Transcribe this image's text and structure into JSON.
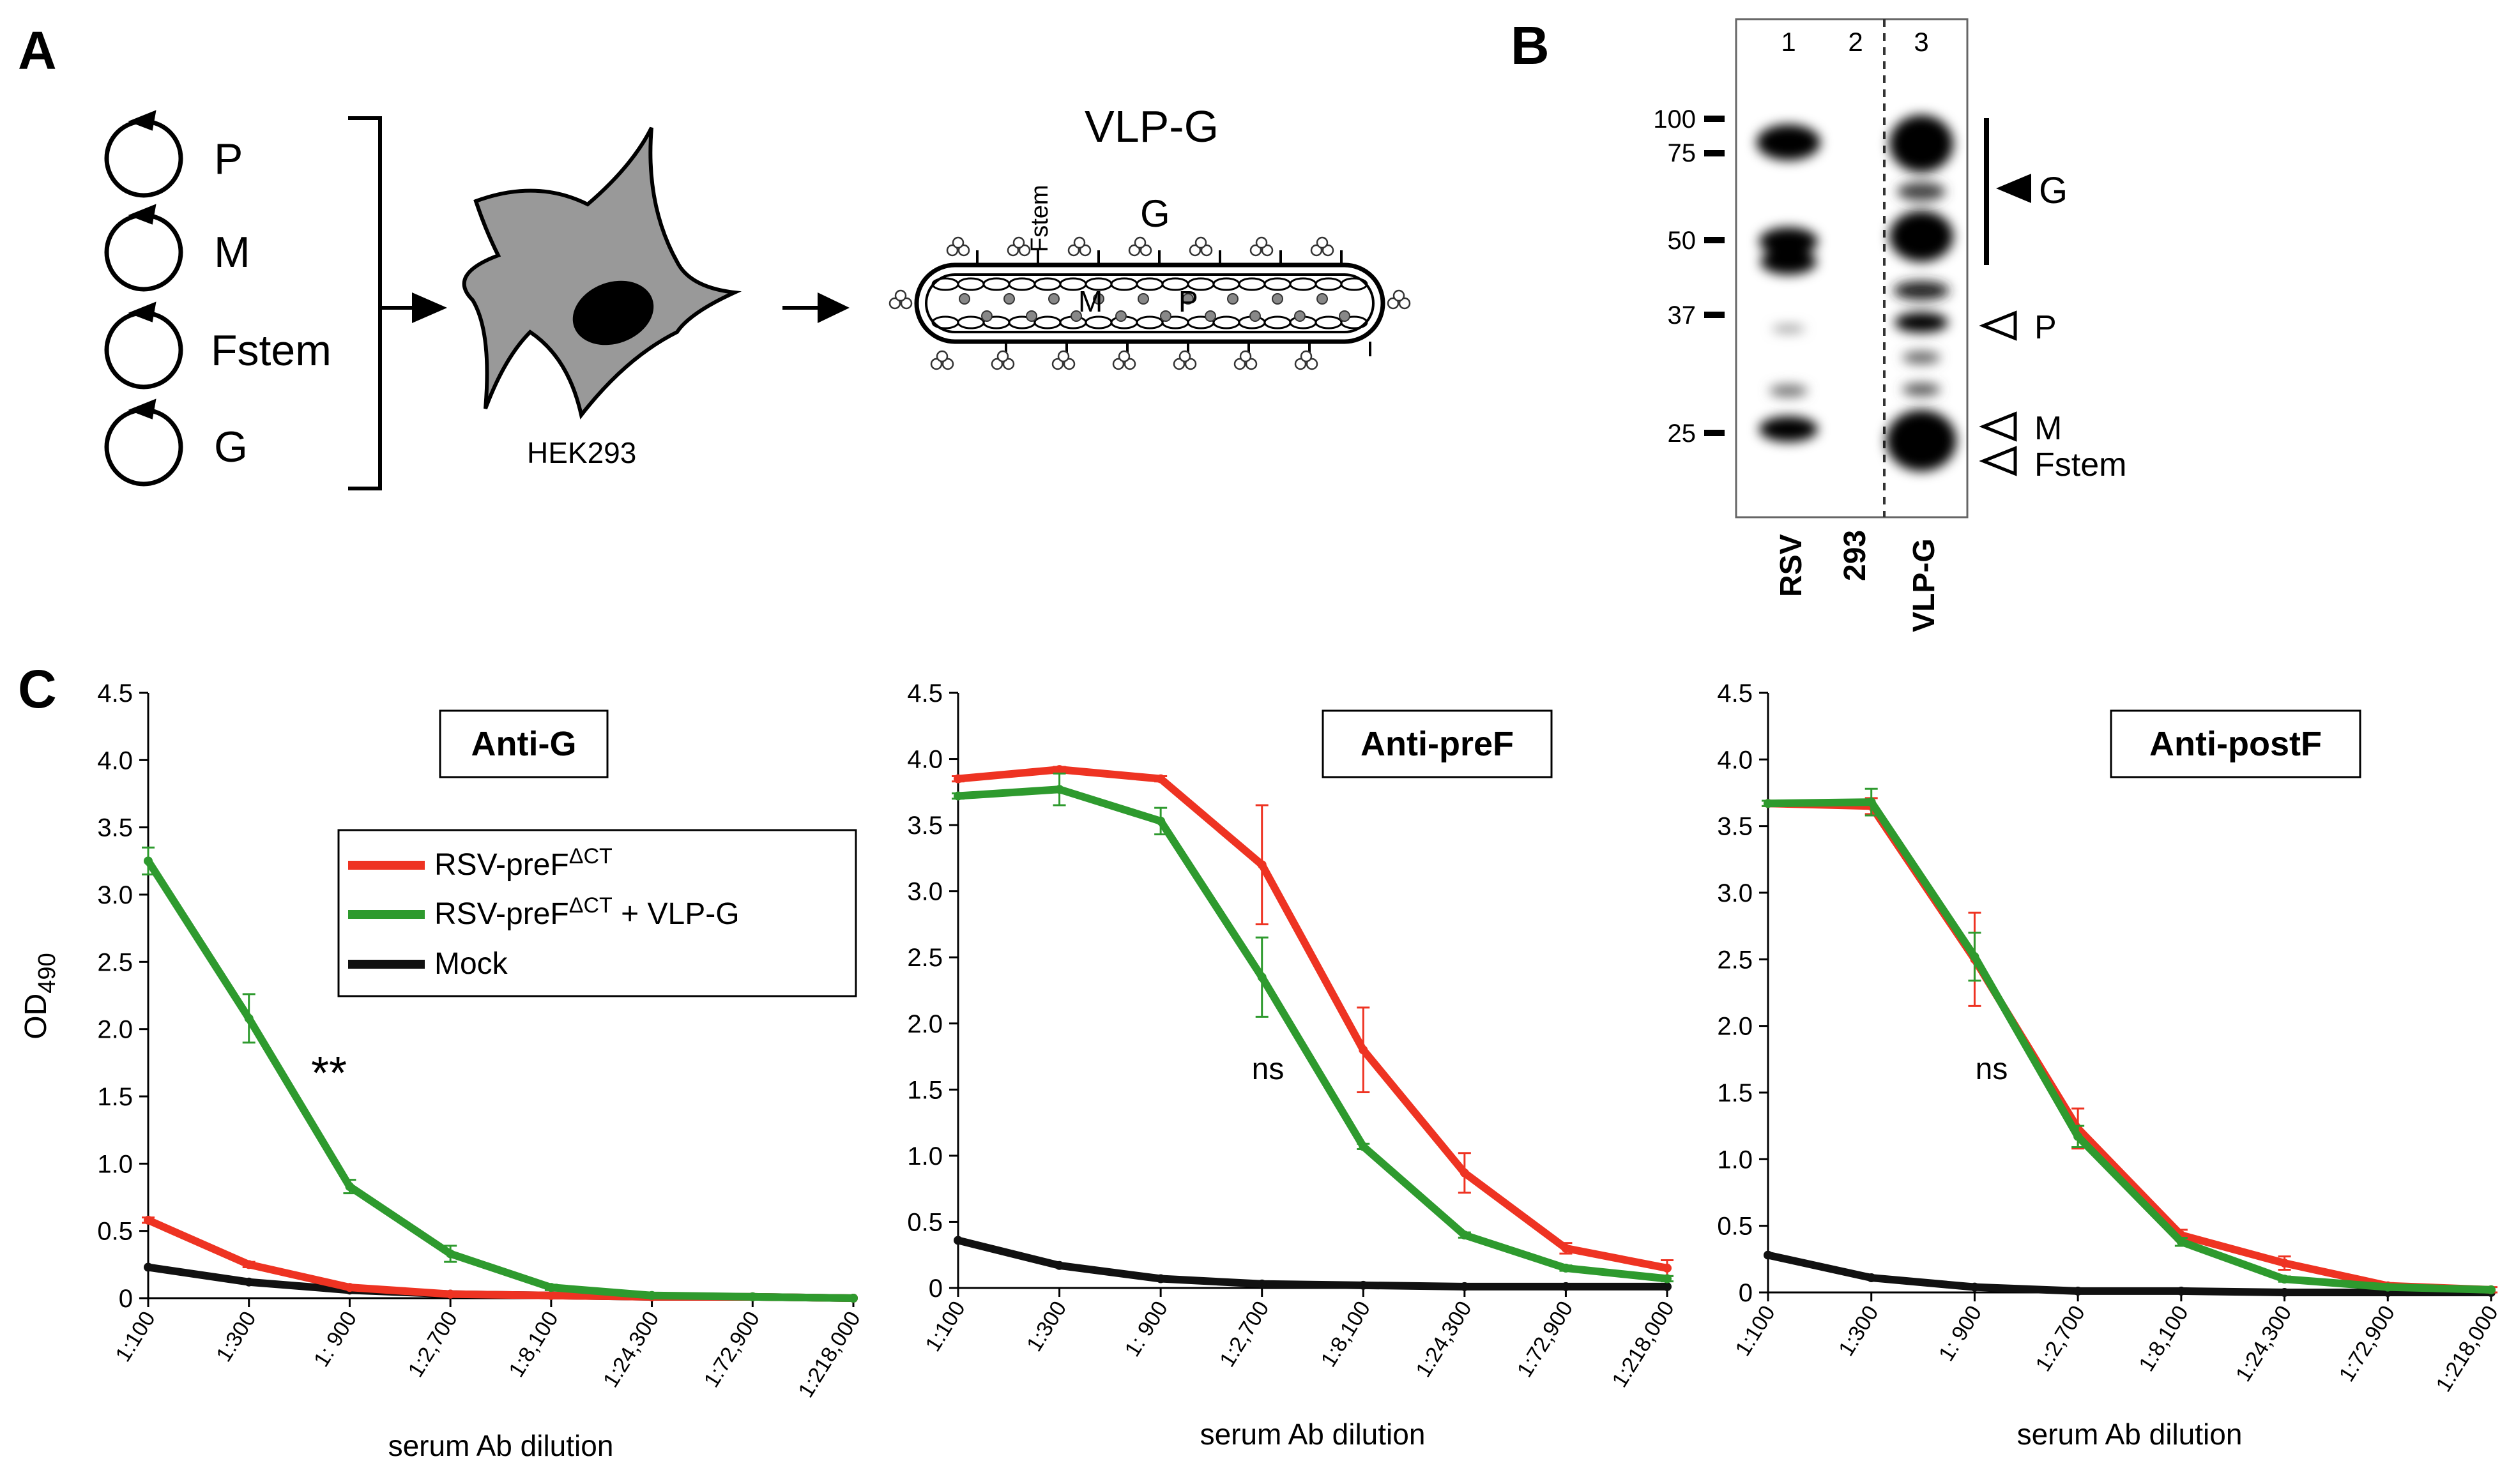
{
  "panels": {
    "A": {
      "letter": "A",
      "plasmids": [
        "P",
        "M",
        "Fstem",
        "G"
      ],
      "cell_label": "HEK293",
      "vlp_title": "VLP-G",
      "vlp_labels": {
        "fstem": "Fstem",
        "g": "G",
        "m": "M",
        "p": "P"
      }
    },
    "B": {
      "letter": "B",
      "lanes": [
        "1",
        "2",
        "3"
      ],
      "lane_names": [
        "RSV",
        "293",
        "VLP-G"
      ],
      "markers": [
        "100",
        "75",
        "50",
        "37",
        "25"
      ],
      "bands": {
        "G": "G",
        "P": "P",
        "M": "M",
        "Fstem": "Fstem"
      }
    },
    "C": {
      "letter": "C"
    }
  },
  "legend": {
    "items": [
      {
        "base": "RSV-preF",
        "sup": "ΔCT",
        "suffix": "",
        "color": "#ee3322"
      },
      {
        "base": "RSV-preF",
        "sup": "ΔCT",
        "suffix": " + VLP-G",
        "color": "#2e9a2e"
      },
      {
        "base": "Mock",
        "sup": "",
        "suffix": "",
        "color": "#111111"
      }
    ]
  },
  "colors": {
    "red": "#ee3322",
    "green": "#2e9a2e",
    "black": "#111111"
  },
  "chart_data": [
    {
      "type": "line",
      "title": "Anti-G",
      "ylabel": "OD490",
      "xlabel": "serum Ab dilution",
      "categories": [
        "1:100",
        "1:300",
        "1: 900",
        "1:2,700",
        "1:8,100",
        "1:24,300",
        "1:72,900",
        "1:218,000"
      ],
      "ylim": [
        0,
        4.5
      ],
      "yticks": [
        "0",
        "0.5",
        "1.0",
        "1.5",
        "2.0",
        "2.5",
        "3.0",
        "3.5",
        "4.0",
        "4.5"
      ],
      "annotation": "**",
      "series": [
        {
          "name": "RSV-preFΔCT",
          "color": "red",
          "values": [
            0.58,
            0.25,
            0.08,
            0.03,
            0.02,
            0.01,
            0.01,
            0.0
          ],
          "errors": [
            0.02,
            0.02,
            0.01,
            0,
            0,
            0,
            0,
            0
          ]
        },
        {
          "name": "RSV-preFΔCT + VLP-G",
          "color": "green",
          "values": [
            3.25,
            2.08,
            0.83,
            0.33,
            0.08,
            0.02,
            0.01,
            0.0
          ],
          "errors": [
            0.1,
            0.18,
            0.05,
            0.06,
            0.02,
            0,
            0,
            0
          ]
        },
        {
          "name": "Mock",
          "color": "black",
          "values": [
            0.23,
            0.12,
            0.06,
            0.03,
            0.02,
            0.01,
            0.01,
            0.0
          ],
          "errors": [
            0,
            0,
            0,
            0,
            0,
            0,
            0,
            0
          ]
        }
      ]
    },
    {
      "type": "line",
      "title": "Anti-preF",
      "xlabel": "serum Ab dilution",
      "categories": [
        "1:100",
        "1:300",
        "1: 900",
        "1:2,700",
        "1:8,100",
        "1:24,300",
        "1:72,900",
        "1:218,000"
      ],
      "ylim": [
        0,
        4.5
      ],
      "yticks": [
        "0",
        "0.5",
        "1.0",
        "1.5",
        "2.0",
        "2.5",
        "3.0",
        "3.5",
        "4.0",
        "4.5"
      ],
      "annotation": "ns",
      "series": [
        {
          "name": "RSV-preFΔCT",
          "color": "red",
          "values": [
            3.85,
            3.92,
            3.85,
            3.2,
            1.8,
            0.87,
            0.3,
            0.15
          ],
          "errors": [
            0.02,
            0.02,
            0.02,
            0.45,
            0.32,
            0.15,
            0.04,
            0.06
          ]
        },
        {
          "name": "RSV-preFΔCT + VLP-G",
          "color": "green",
          "values": [
            3.72,
            3.77,
            3.53,
            2.35,
            1.07,
            0.4,
            0.15,
            0.07
          ],
          "errors": [
            0.02,
            0.12,
            0.1,
            0.3,
            0.02,
            0.02,
            0.02,
            0.02
          ]
        },
        {
          "name": "Mock",
          "color": "black",
          "values": [
            0.36,
            0.17,
            0.07,
            0.03,
            0.02,
            0.01,
            0.01,
            0.01
          ],
          "errors": [
            0,
            0,
            0,
            0,
            0,
            0,
            0,
            0
          ]
        }
      ]
    },
    {
      "type": "line",
      "title": "Anti-postF",
      "xlabel": "serum Ab dilution",
      "categories": [
        "1:100",
        "1:300",
        "1: 900",
        "1:2,700",
        "1:8,100",
        "1:24,300",
        "1:72,900",
        "1:218,000"
      ],
      "ylim": [
        0,
        4.5
      ],
      "yticks": [
        "0",
        "0.5",
        "1.0",
        "1.5",
        "2.0",
        "2.5",
        "3.0",
        "3.5",
        "4.0",
        "4.5"
      ],
      "annotation": "ns",
      "series": [
        {
          "name": "RSV-preFΔCT",
          "color": "red",
          "values": [
            3.67,
            3.65,
            2.5,
            1.23,
            0.43,
            0.22,
            0.05,
            0.02
          ],
          "errors": [
            0.02,
            0.06,
            0.35,
            0.15,
            0.04,
            0.05,
            0.02,
            0.02
          ]
        },
        {
          "name": "RSV-preFΔCT + VLP-G",
          "color": "green",
          "values": [
            3.67,
            3.68,
            2.52,
            1.17,
            0.38,
            0.1,
            0.04,
            0.02
          ],
          "errors": [
            0.02,
            0.1,
            0.18,
            0.08,
            0.03,
            0.02,
            0.01,
            0.01
          ]
        },
        {
          "name": "Mock",
          "color": "black",
          "values": [
            0.28,
            0.11,
            0.04,
            0.01,
            0.01,
            0.0,
            0.0,
            0.0
          ],
          "errors": [
            0,
            0,
            0,
            0,
            0,
            0,
            0,
            0
          ]
        }
      ]
    }
  ]
}
